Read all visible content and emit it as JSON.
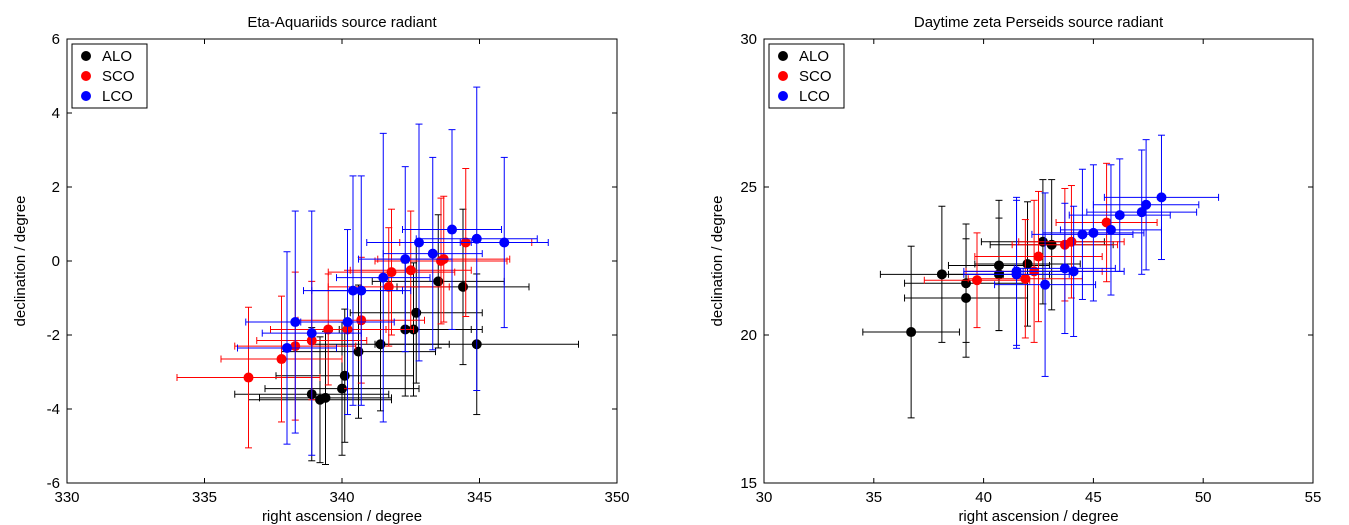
{
  "chart_data": [
    {
      "type": "scatter",
      "title": "Eta-Aquariids source radiant",
      "xlabel": "right ascension / degree",
      "ylabel": "declination / degree",
      "xlim": [
        330,
        350
      ],
      "ylim": [
        -6,
        6
      ],
      "xticks": [
        330,
        335,
        340,
        345,
        350
      ],
      "yticks": [
        -6,
        -4,
        -2,
        0,
        2,
        4,
        6
      ],
      "legend_position": "top-left",
      "series": [
        {
          "name": "ALO",
          "color": "#000000",
          "points": [
            {
              "x": 338.9,
              "y": -3.6,
              "xerr": 2.8,
              "yerr": 1.8
            },
            {
              "x": 339.2,
              "y": -3.75,
              "xerr": 2.6,
              "yerr": 1.7
            },
            {
              "x": 339.4,
              "y": -3.7,
              "xerr": 2.4,
              "yerr": 1.8
            },
            {
              "x": 340.0,
              "y": -3.45,
              "xerr": 2.8,
              "yerr": 1.8
            },
            {
              "x": 340.1,
              "y": -3.1,
              "xerr": 2.5,
              "yerr": 1.8
            },
            {
              "x": 340.6,
              "y": -2.45,
              "xerr": 2.8,
              "yerr": 1.8
            },
            {
              "x": 341.4,
              "y": -2.25,
              "xerr": 2.5,
              "yerr": 1.8
            },
            {
              "x": 342.3,
              "y": -1.85,
              "xerr": 2.4,
              "yerr": 1.8
            },
            {
              "x": 342.6,
              "y": -1.85,
              "xerr": 2.5,
              "yerr": 1.8
            },
            {
              "x": 342.7,
              "y": -1.4,
              "xerr": 2.4,
              "yerr": 1.9
            },
            {
              "x": 343.5,
              "y": -0.55,
              "xerr": 2.4,
              "yerr": 1.8
            },
            {
              "x": 344.4,
              "y": -0.7,
              "xerr": 2.4,
              "yerr": 2.1
            },
            {
              "x": 344.9,
              "y": -2.25,
              "xerr": 3.7,
              "yerr": 1.9
            }
          ]
        },
        {
          "name": "SCO",
          "color": "#ff0000",
          "points": [
            {
              "x": 336.6,
              "y": -3.15,
              "xerr": 2.6,
              "yerr": 1.9
            },
            {
              "x": 337.8,
              "y": -2.65,
              "xerr": 2.2,
              "yerr": 1.7
            },
            {
              "x": 338.3,
              "y": -2.3,
              "xerr": 2.2,
              "yerr": 2.0
            },
            {
              "x": 338.9,
              "y": -2.15,
              "xerr": 2.0,
              "yerr": 1.6
            },
            {
              "x": 339.5,
              "y": -1.85,
              "xerr": 2.1,
              "yerr": 1.5
            },
            {
              "x": 340.2,
              "y": -1.85,
              "xerr": 2.4,
              "yerr": 1.6
            },
            {
              "x": 340.7,
              "y": -1.6,
              "xerr": 2.3,
              "yerr": 1.7
            },
            {
              "x": 341.7,
              "y": -0.7,
              "xerr": 2.2,
              "yerr": 1.6
            },
            {
              "x": 341.8,
              "y": -0.3,
              "xerr": 2.3,
              "yerr": 1.7
            },
            {
              "x": 342.5,
              "y": -0.25,
              "xerr": 2.2,
              "yerr": 1.6
            },
            {
              "x": 343.6,
              "y": 0.0,
              "xerr": 2.4,
              "yerr": 1.7
            },
            {
              "x": 343.7,
              "y": 0.05,
              "xerr": 2.4,
              "yerr": 1.7
            },
            {
              "x": 344.5,
              "y": 0.5,
              "xerr": 2.4,
              "yerr": 2.0
            }
          ]
        },
        {
          "name": "LCO",
          "color": "#0000ff",
          "points": [
            {
              "x": 338.0,
              "y": -2.35,
              "xerr": 1.8,
              "yerr": 2.6
            },
            {
              "x": 338.3,
              "y": -1.65,
              "xerr": 1.8,
              "yerr": 3.0
            },
            {
              "x": 338.9,
              "y": -1.95,
              "xerr": 1.8,
              "yerr": 3.3
            },
            {
              "x": 340.2,
              "y": -1.65,
              "xerr": 1.7,
              "yerr": 2.5
            },
            {
              "x": 340.4,
              "y": -0.8,
              "xerr": 1.8,
              "yerr": 3.1
            },
            {
              "x": 340.7,
              "y": -0.8,
              "xerr": 1.8,
              "yerr": 3.1
            },
            {
              "x": 341.5,
              "y": -0.45,
              "xerr": 1.7,
              "yerr": 3.9
            },
            {
              "x": 342.3,
              "y": 0.05,
              "xerr": 1.7,
              "yerr": 2.5
            },
            {
              "x": 342.8,
              "y": 0.5,
              "xerr": 1.9,
              "yerr": 3.2
            },
            {
              "x": 343.3,
              "y": 0.2,
              "xerr": 1.8,
              "yerr": 2.6
            },
            {
              "x": 344.0,
              "y": 0.85,
              "xerr": 1.8,
              "yerr": 2.7
            },
            {
              "x": 344.9,
              "y": 0.6,
              "xerr": 2.2,
              "yerr": 4.1
            },
            {
              "x": 345.9,
              "y": 0.5,
              "xerr": 1.6,
              "yerr": 2.3
            }
          ]
        }
      ]
    },
    {
      "type": "scatter",
      "title": "Daytime zeta Perseids source radiant",
      "xlabel": "right ascension / degree",
      "ylabel": "declination / degree",
      "xlim": [
        30,
        55
      ],
      "ylim": [
        15,
        30
      ],
      "xticks": [
        30,
        35,
        40,
        45,
        50,
        55
      ],
      "yticks": [
        15,
        20,
        25,
        30
      ],
      "legend_position": "top-left",
      "series": [
        {
          "name": "ALO",
          "color": "#000000",
          "points": [
            {
              "x": 36.7,
              "y": 20.1,
              "xerr": 2.2,
              "yerr": 2.9
            },
            {
              "x": 38.1,
              "y": 22.05,
              "xerr": 2.8,
              "yerr": 2.3
            },
            {
              "x": 39.2,
              "y": 21.25,
              "xerr": 2.8,
              "yerr": 2.0
            },
            {
              "x": 39.2,
              "y": 21.75,
              "xerr": 2.8,
              "yerr": 2.0
            },
            {
              "x": 40.7,
              "y": 22.05,
              "xerr": 2.3,
              "yerr": 1.9
            },
            {
              "x": 40.7,
              "y": 22.35,
              "xerr": 2.3,
              "yerr": 2.2
            },
            {
              "x": 42.0,
              "y": 22.4,
              "xerr": 2.4,
              "yerr": 2.1
            },
            {
              "x": 42.7,
              "y": 23.15,
              "xerr": 2.8,
              "yerr": 2.1
            },
            {
              "x": 43.1,
              "y": 23.05,
              "xerr": 2.8,
              "yerr": 2.2
            }
          ]
        },
        {
          "name": "SCO",
          "color": "#ff0000",
          "points": [
            {
              "x": 39.7,
              "y": 21.85,
              "xerr": 2.4,
              "yerr": 1.6
            },
            {
              "x": 41.9,
              "y": 21.9,
              "xerr": 2.6,
              "yerr": 2.0
            },
            {
              "x": 42.3,
              "y": 22.15,
              "xerr": 3.1,
              "yerr": 2.4
            },
            {
              "x": 42.5,
              "y": 22.65,
              "xerr": 2.9,
              "yerr": 2.2
            },
            {
              "x": 43.7,
              "y": 23.05,
              "xerr": 2.4,
              "yerr": 1.9
            },
            {
              "x": 44.0,
              "y": 23.15,
              "xerr": 2.4,
              "yerr": 1.9
            },
            {
              "x": 45.6,
              "y": 23.8,
              "xerr": 2.3,
              "yerr": 2.0
            }
          ]
        },
        {
          "name": "LCO",
          "color": "#0000ff",
          "points": [
            {
              "x": 41.5,
              "y": 22.05,
              "xerr": 2.4,
              "yerr": 2.5
            },
            {
              "x": 41.5,
              "y": 22.15,
              "xerr": 2.4,
              "yerr": 2.5
            },
            {
              "x": 42.8,
              "y": 21.7,
              "xerr": 2.3,
              "yerr": 3.1
            },
            {
              "x": 43.7,
              "y": 22.25,
              "xerr": 2.3,
              "yerr": 2.2
            },
            {
              "x": 44.1,
              "y": 22.15,
              "xerr": 2.3,
              "yerr": 2.2
            },
            {
              "x": 44.5,
              "y": 23.4,
              "xerr": 2.3,
              "yerr": 2.2
            },
            {
              "x": 45.0,
              "y": 23.45,
              "xerr": 2.3,
              "yerr": 2.3
            },
            {
              "x": 45.8,
              "y": 23.55,
              "xerr": 2.3,
              "yerr": 2.2
            },
            {
              "x": 46.2,
              "y": 24.05,
              "xerr": 2.3,
              "yerr": 1.9
            },
            {
              "x": 47.2,
              "y": 24.15,
              "xerr": 2.5,
              "yerr": 2.1
            },
            {
              "x": 47.4,
              "y": 24.4,
              "xerr": 2.4,
              "yerr": 2.2
            },
            {
              "x": 48.1,
              "y": 24.65,
              "xerr": 2.6,
              "yerr": 2.1
            }
          ]
        }
      ]
    }
  ]
}
